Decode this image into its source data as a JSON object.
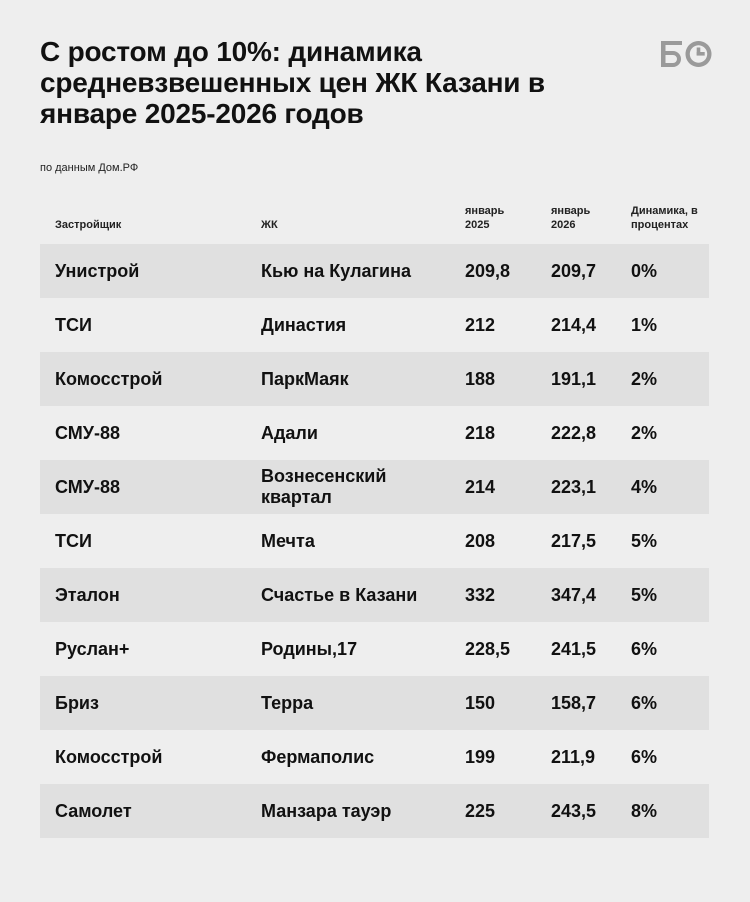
{
  "header": {
    "title": "С ростом до 10%: динамика средневзвешенных цен ЖК Казани в январе 2025-2026 годов",
    "source": "по данным Дом.РФ",
    "logo_text": "БО"
  },
  "chart_data": {
    "type": "table",
    "columns": [
      "Застройщик",
      "ЖК",
      "январь 2025",
      "январь 2026",
      "Динамика, в процентах"
    ],
    "rows": [
      [
        "Унистрой",
        "Кью на Кулагина",
        "209,8",
        "209,7",
        "0%"
      ],
      [
        "ТСИ",
        "Династия",
        "212",
        "214,4",
        "1%"
      ],
      [
        "Комосстрой",
        "ПаркМаяк",
        "188",
        "191,1",
        "2%"
      ],
      [
        "СМУ-88",
        "Адали",
        "218",
        "222,8",
        "2%"
      ],
      [
        "СМУ-88",
        "Вознесенский квартал",
        "214",
        "223,1",
        "4%"
      ],
      [
        "ТСИ",
        "Мечта",
        "208",
        "217,5",
        "5%"
      ],
      [
        "Эталон",
        "Счастье в Казани",
        "332",
        "347,4",
        "5%"
      ],
      [
        "Руслан+",
        "Родины,17",
        "228,5",
        "241,5",
        "6%"
      ],
      [
        "Бриз",
        "Терра",
        "150",
        "158,7",
        "6%"
      ],
      [
        "Комосстрой",
        "Фермаполис",
        "199",
        "211,9",
        "6%"
      ],
      [
        "Самолет",
        "Манзара тауэр",
        "225",
        "243,5",
        "8%"
      ]
    ]
  },
  "colors": {
    "background": "#eeeeee",
    "row_shade": "#e0e0e0",
    "text": "#111111",
    "logo": "#9a9a9a"
  }
}
